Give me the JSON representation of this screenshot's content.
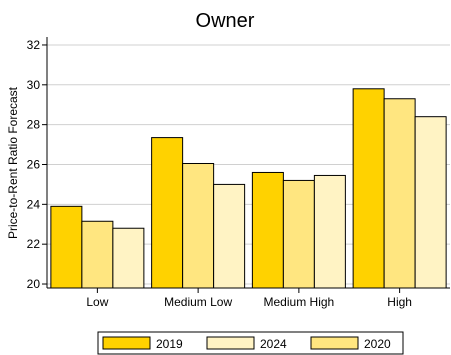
{
  "chart_data": {
    "type": "bar",
    "title": "Owner",
    "ylabel": "Price-to-Rent Ratio Forecast",
    "xlabel": "",
    "categories": [
      "Low",
      "Medium Low",
      "Medium High",
      "High"
    ],
    "series": [
      {
        "name": "2019",
        "values": [
          23.9,
          27.35,
          25.6,
          29.8
        ],
        "color": "#FFD200"
      },
      {
        "name": "2020",
        "values": [
          23.15,
          26.05,
          25.2,
          29.3
        ],
        "color": "#FFE680"
      },
      {
        "name": "2024",
        "values": [
          22.8,
          25.0,
          25.45,
          28.4
        ],
        "color": "#FFF3C4"
      }
    ],
    "ylim": [
      19.8,
      32.4
    ],
    "yticks": [
      20,
      22,
      24,
      26,
      28,
      30,
      32
    ],
    "grid": true,
    "legend_position": "bottom",
    "legend_order": [
      "2019",
      "2024",
      "2020"
    ]
  }
}
